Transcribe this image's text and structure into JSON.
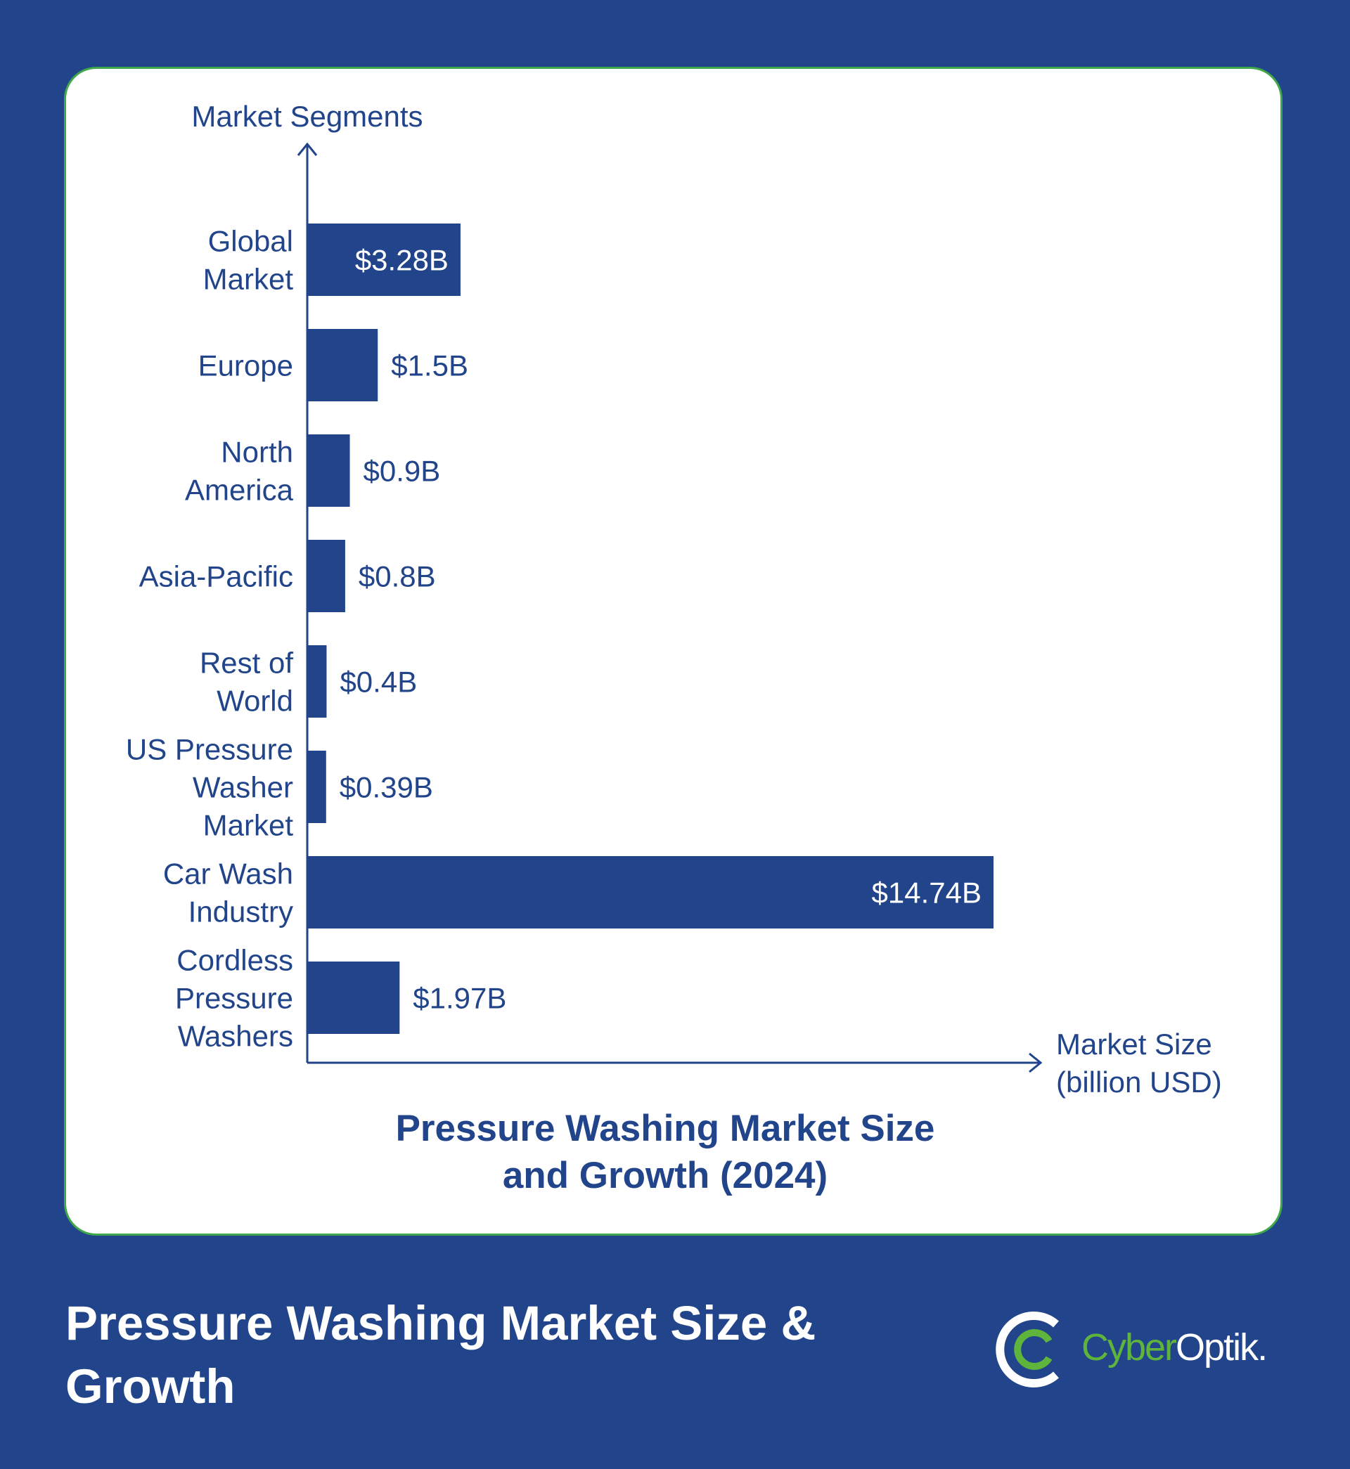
{
  "chart_data": {
    "type": "bar",
    "orientation": "horizontal",
    "title": "Pressure Washing Market Size and Growth (2024)",
    "xlabel": "Market Size (billion USD)",
    "ylabel": "Market Segments",
    "categories": [
      "Global Market",
      "Europe",
      "North America",
      "Asia-Pacific",
      "Rest of World",
      "US Pressure Washer Market",
      "Car Wash Industry",
      "Cordless Pressure Washers"
    ],
    "values": [
      3.28,
      1.5,
      0.9,
      0.8,
      0.4,
      0.39,
      14.74,
      1.97
    ],
    "value_labels": [
      "$3.28B",
      "$1.5B",
      "$0.9B",
      "$0.8B",
      "$0.4B",
      "$0.39B",
      "$14.74B",
      "$1.97B"
    ],
    "xlim": [
      0,
      14.74
    ],
    "grid": false,
    "bar_color": "#21448a"
  },
  "chart_title": "Pressure Washing Market Size and Growth (2024)",
  "footer": {
    "title": "Pressure Washing Market Size & Growth"
  },
  "logo": {
    "part1": "Cyber",
    "part2": "Optik."
  },
  "colors": {
    "background": "#21448a",
    "card_border": "#3ea84a",
    "logo_green": "#5fb43b"
  }
}
